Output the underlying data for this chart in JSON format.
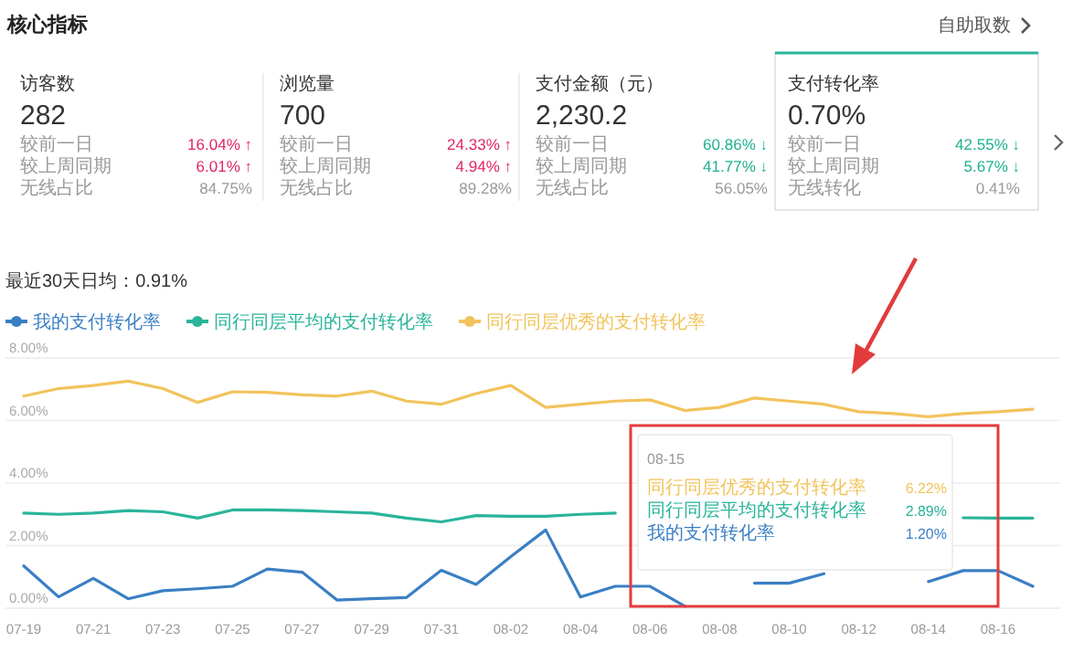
{
  "chart_data": [
    {
      "type": "other",
      "title": "核心指标",
      "annotations": [
        "自助取数",
        "访客数",
        "282",
        "较前一日",
        "16.04% ↑",
        "较上周同期",
        "6.01% ↑",
        "无线占比",
        "84.75%",
        "浏览量",
        "700",
        "较前一日",
        "24.33% ↑",
        "较上周同期",
        "4.94% ↑",
        "无线占比",
        "89.28%",
        "支付金额（元）",
        "2,230.2",
        "较前一日",
        "60.86% ↓",
        "较上周同期",
        "41.77% ↓",
        "无线占比",
        "56.05%",
        "支付转化率",
        "0.70%",
        "较前一日",
        "42.55% ↓",
        "较上周同期",
        "5.67% ↓",
        "无线转化",
        "0.41%"
      ],
      "colors": [
        "#555555",
        "#333333",
        "#333333",
        "#999999",
        "#e0245e",
        "#999999",
        "#e0245e",
        "#999999",
        "#999999",
        "#333333",
        "#333333",
        "#999999",
        "#e0245e",
        "#999999",
        "#e0245e",
        "#999999",
        "#999999",
        "#333333",
        "#333333",
        "#999999",
        "#1fb08f",
        "#999999",
        "#1fb08f",
        "#999999",
        "#999999",
        "#333333",
        "#333333",
        "#999999",
        "#1fb08f",
        "#999999",
        "#1fb08f",
        "#999999",
        "#999999"
      ]
    },
    {
      "type": "line",
      "title": "最近30天日均：0.91%",
      "categories": [
        "07-19",
        null,
        "07-21",
        null,
        "07-23",
        null,
        "07-25",
        null,
        "07-27",
        null,
        "07-29",
        null,
        "07-31",
        null,
        "08-02",
        null,
        "08-04",
        null,
        "08-06",
        null,
        "08-08",
        null,
        "08-10",
        null,
        "08-12",
        null,
        "08-14",
        null,
        "08-16",
        null
      ],
      "series": [
        {
          "name": "我的支付转化率",
          "color": "#3a7fc4",
          "values": [
            1.35,
            0.36,
            0.95,
            0.3,
            0.56,
            0.62,
            0.7,
            1.25,
            1.15,
            0.26,
            0.3,
            0.34,
            1.21,
            0.76,
            1.65,
            2.5,
            0.36,
            0.7,
            0.7,
            0.06,
            null,
            0.8,
            0.8,
            1.1,
            null,
            null,
            0.85,
            1.2,
            1.2,
            0.7
          ]
        },
        {
          "name": "同行同层平均的支付转化率",
          "color": "#2ab49a",
          "values": [
            3.04,
            3.0,
            3.04,
            3.12,
            3.08,
            2.88,
            3.14,
            3.14,
            3.12,
            3.08,
            3.04,
            2.88,
            2.76,
            2.96,
            2.94,
            2.94,
            3.0,
            3.04,
            null,
            null,
            null,
            null,
            null,
            null,
            null,
            null,
            null,
            2.89,
            2.88,
            2.88
          ]
        },
        {
          "name": "同行同层优秀的支付转化率",
          "color": "#f2c35c",
          "values": [
            6.78,
            7.02,
            7.12,
            7.26,
            7.02,
            6.58,
            6.92,
            6.9,
            6.82,
            6.78,
            6.94,
            6.62,
            6.52,
            6.86,
            7.12,
            6.42,
            6.52,
            6.62,
            6.66,
            6.32,
            6.42,
            6.72,
            6.62,
            6.52,
            6.28,
            6.22,
            6.12,
            6.22,
            6.28,
            6.36
          ]
        }
      ],
      "ylim": [
        0,
        8
      ],
      "yticks": [
        {
          "value": 0,
          "label": "0.00%"
        },
        {
          "value": 2,
          "label": "2.00%"
        },
        {
          "value": 4,
          "label": "4.00%"
        },
        {
          "value": 6,
          "label": "6.00%"
        },
        {
          "value": 8,
          "label": "8.00%"
        }
      ],
      "grid": "y",
      "legend": "top left",
      "annotations": [
        "08-15",
        "同行同层优秀的支付转化率",
        "6.22%",
        "同行同层平均的支付转化率",
        "2.89%",
        "我的支付转化率",
        "1.20%"
      ]
    }
  ]
}
